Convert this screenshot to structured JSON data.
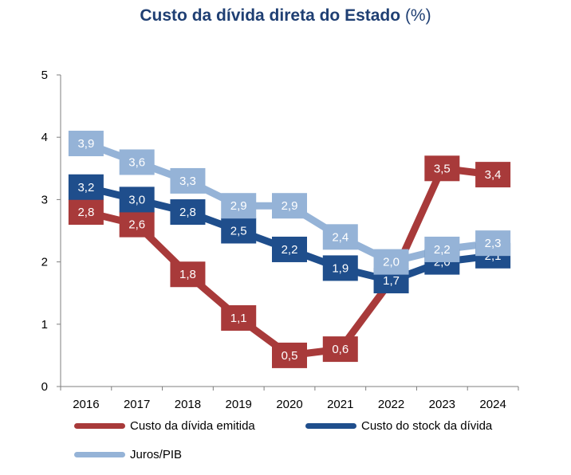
{
  "chart_data": {
    "type": "line",
    "title": "Custo da dívida direta do Estado",
    "title_unit": "(%)",
    "categories": [
      "2016",
      "2017",
      "2018",
      "2019",
      "2020",
      "2021",
      "2022",
      "2023",
      "2024"
    ],
    "ylim": [
      0,
      5
    ],
    "yticks": [
      "0",
      "1",
      "2",
      "3",
      "4",
      "5"
    ],
    "grid": false,
    "legend_position": "bottom",
    "series": [
      {
        "name": "Custo da dívida emitida",
        "color": "#a83a3a",
        "values": [
          2.8,
          2.6,
          1.8,
          1.1,
          0.5,
          0.6,
          1.7,
          3.5,
          3.4
        ],
        "labels": [
          "2,8",
          "2,6",
          "1,8",
          "1,1",
          "0,5",
          "0,6",
          "",
          "3,5",
          "3,4"
        ]
      },
      {
        "name": "Custo do stock da dívida",
        "color": "#1f4e8c",
        "values": [
          3.2,
          3.0,
          2.8,
          2.5,
          2.2,
          1.9,
          1.7,
          2.0,
          2.1
        ],
        "labels": [
          "3,2",
          "3,0",
          "2,8",
          "2,5",
          "2,2",
          "1,9",
          "1,7",
          "2,0",
          "2,1"
        ]
      },
      {
        "name": "Juros/PIB",
        "color": "#95b3d7",
        "values": [
          3.9,
          3.6,
          3.3,
          2.9,
          2.9,
          2.4,
          2.0,
          2.2,
          2.3
        ],
        "labels": [
          "3,9",
          "3,6",
          "3,3",
          "2,9",
          "2,9",
          "2,4",
          "2,0",
          "2,2",
          "2,3"
        ]
      }
    ]
  }
}
